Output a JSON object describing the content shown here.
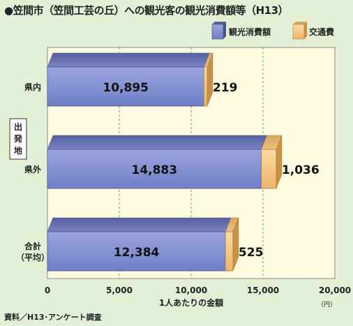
{
  "title": "●笠間市（笠間工芸の丘）への観光客の観光消費額等（H13）",
  "source": "資料／H13･アンケート調査",
  "chart_data": {
    "type": "bar",
    "orientation": "horizontal",
    "stacked": true,
    "categories": [
      "県内",
      "県外",
      "合計\n（平均）"
    ],
    "series": [
      {
        "name": "観光消費額",
        "values": [
          10895,
          14883,
          12384
        ],
        "labels": [
          "10,895",
          "14,883",
          "12,384"
        ],
        "color": "#7f8fd0"
      },
      {
        "name": "交通費",
        "values": [
          219,
          1036,
          525
        ],
        "labels": [
          "219",
          "1,036",
          "525"
        ],
        "color": "#f2c27c"
      }
    ],
    "ylabel": "出発地",
    "xlabel": "1人あたりの金額",
    "x_unit": "（円）",
    "xlim": [
      0,
      20000
    ],
    "xticks": [
      0,
      5000,
      10000,
      15000,
      20000
    ],
    "xtick_labels": [
      "0",
      "5,000",
      "10,000",
      "15,000",
      "20,000"
    ],
    "grid": "vertical-dashed",
    "legend_position": "top-right",
    "plot_background": "#fffbe0",
    "page_background": "#e3f0d6"
  }
}
